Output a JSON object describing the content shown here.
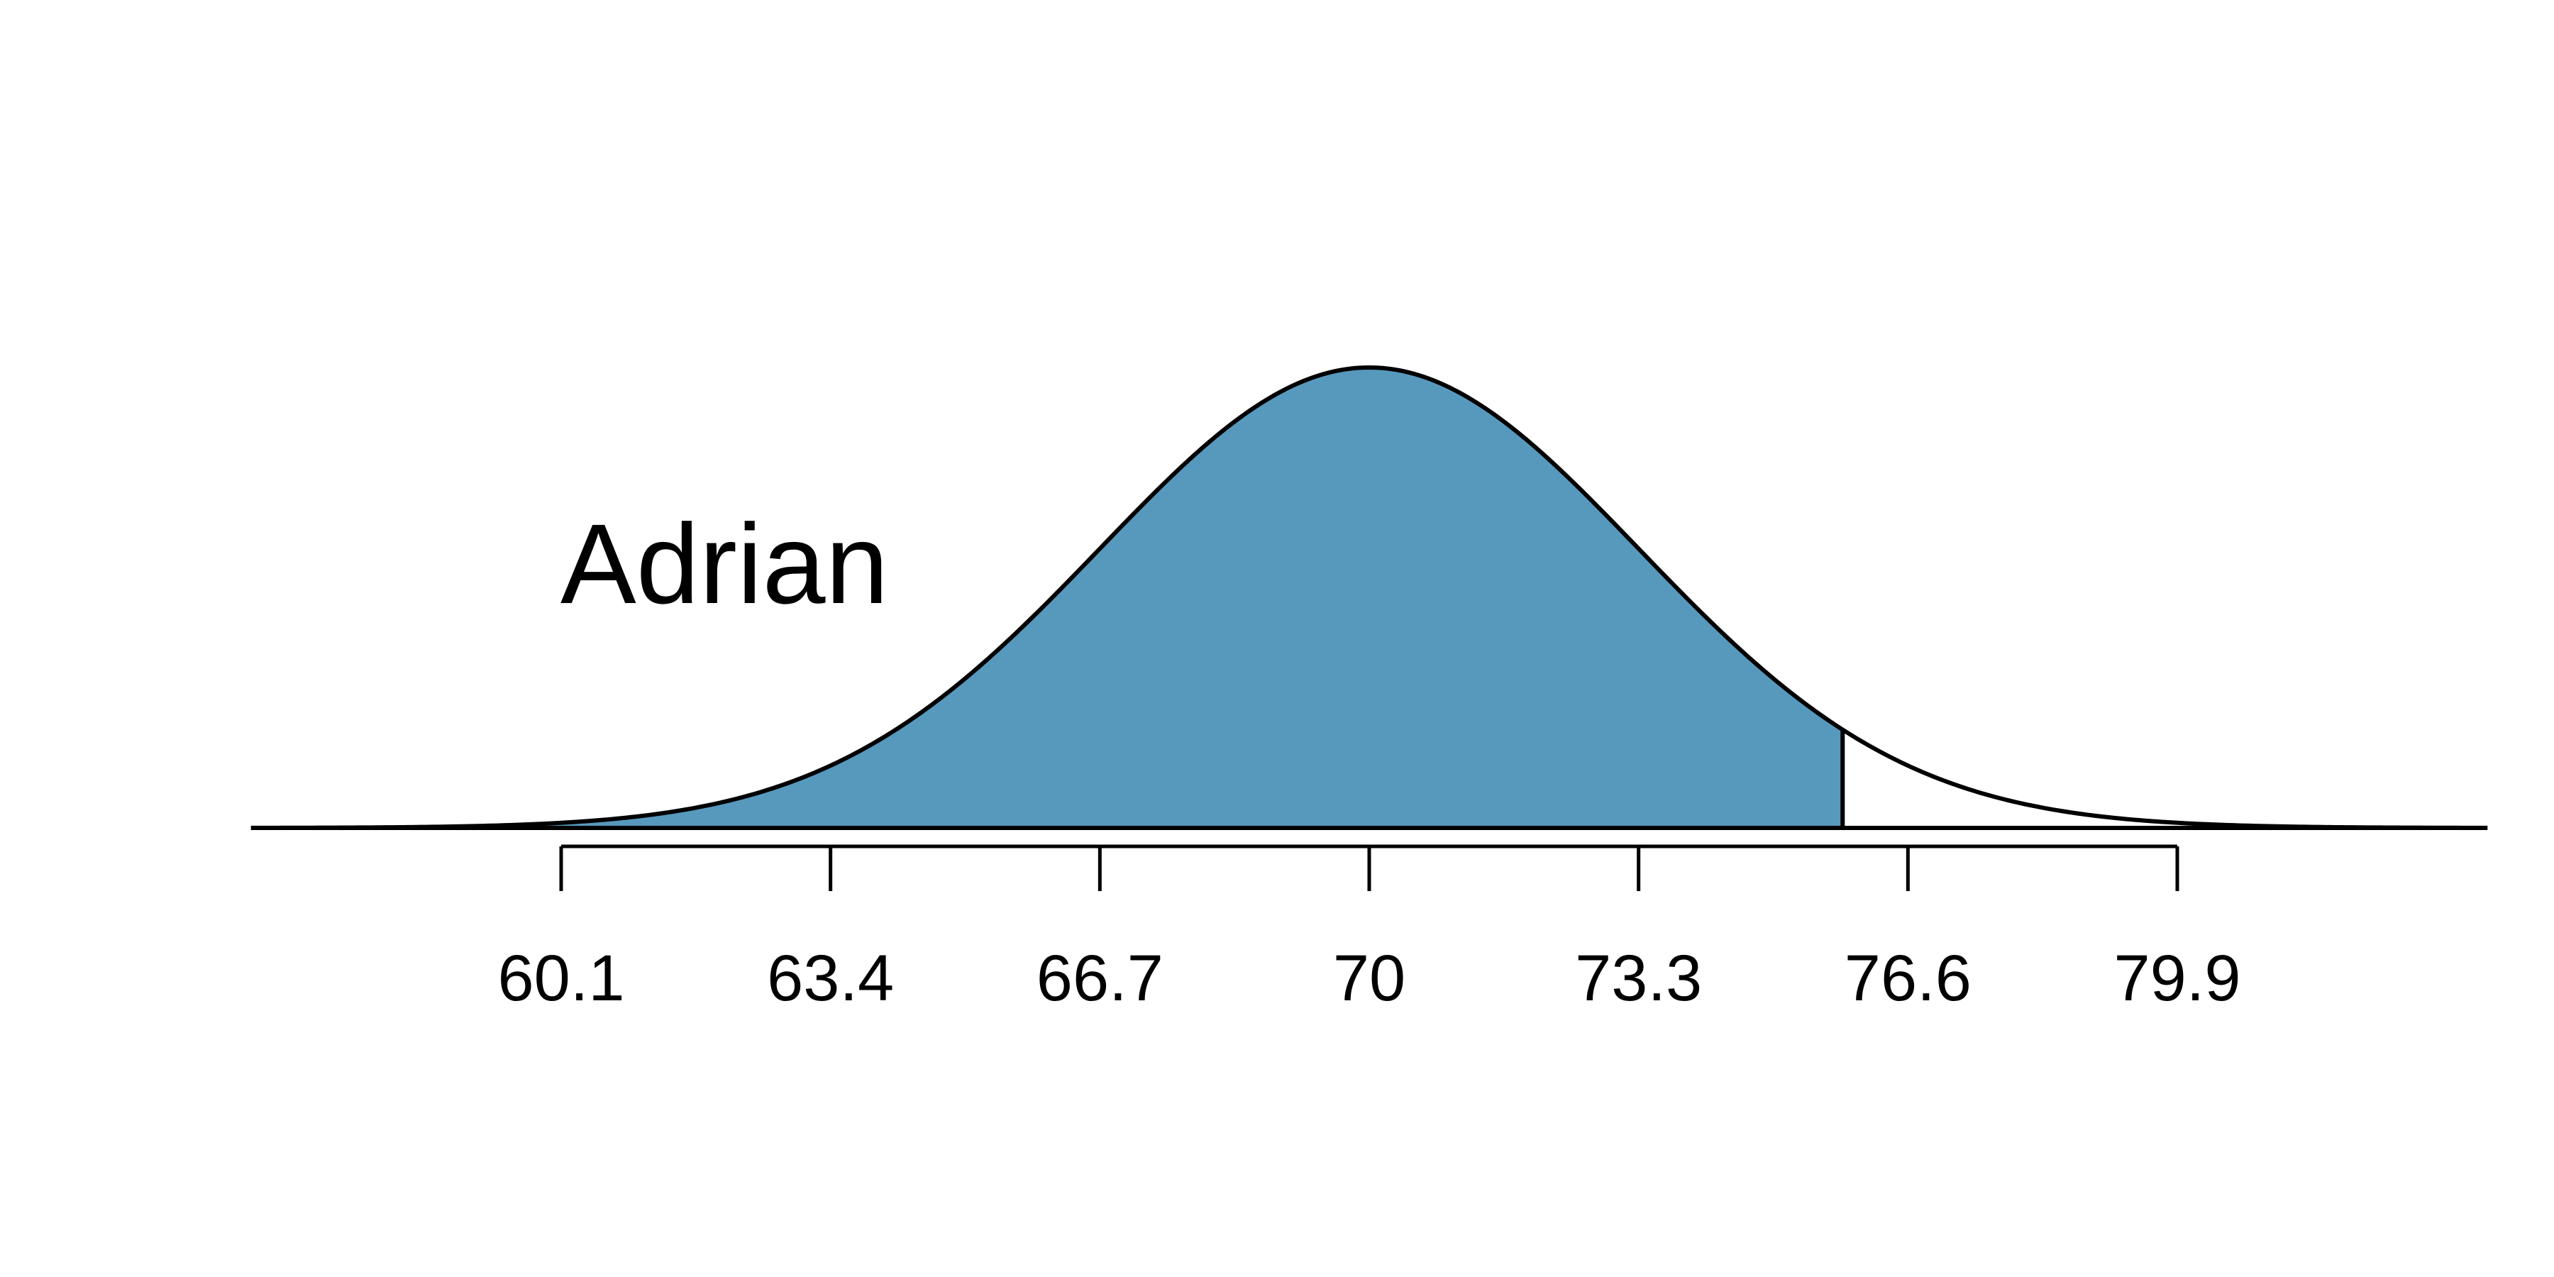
{
  "chart_data": {
    "type": "area",
    "distribution": "normal",
    "mean": 70,
    "sd": 3.3,
    "shade_from": 56.3,
    "shade_to": 75.8,
    "x_min": 56.3,
    "x_max": 83.7,
    "ticks": [
      60.1,
      63.4,
      66.7,
      70,
      73.3,
      76.6,
      79.9
    ],
    "tick_labels": [
      "60.1",
      "63.4",
      "66.7",
      "70",
      "73.3",
      "76.6",
      "79.9"
    ],
    "annotation": "Adrian",
    "title": "",
    "xlabel": "",
    "ylabel": "",
    "colors": {
      "fill": "#5799bd",
      "line": "#000000",
      "background": "#ffffff"
    }
  }
}
